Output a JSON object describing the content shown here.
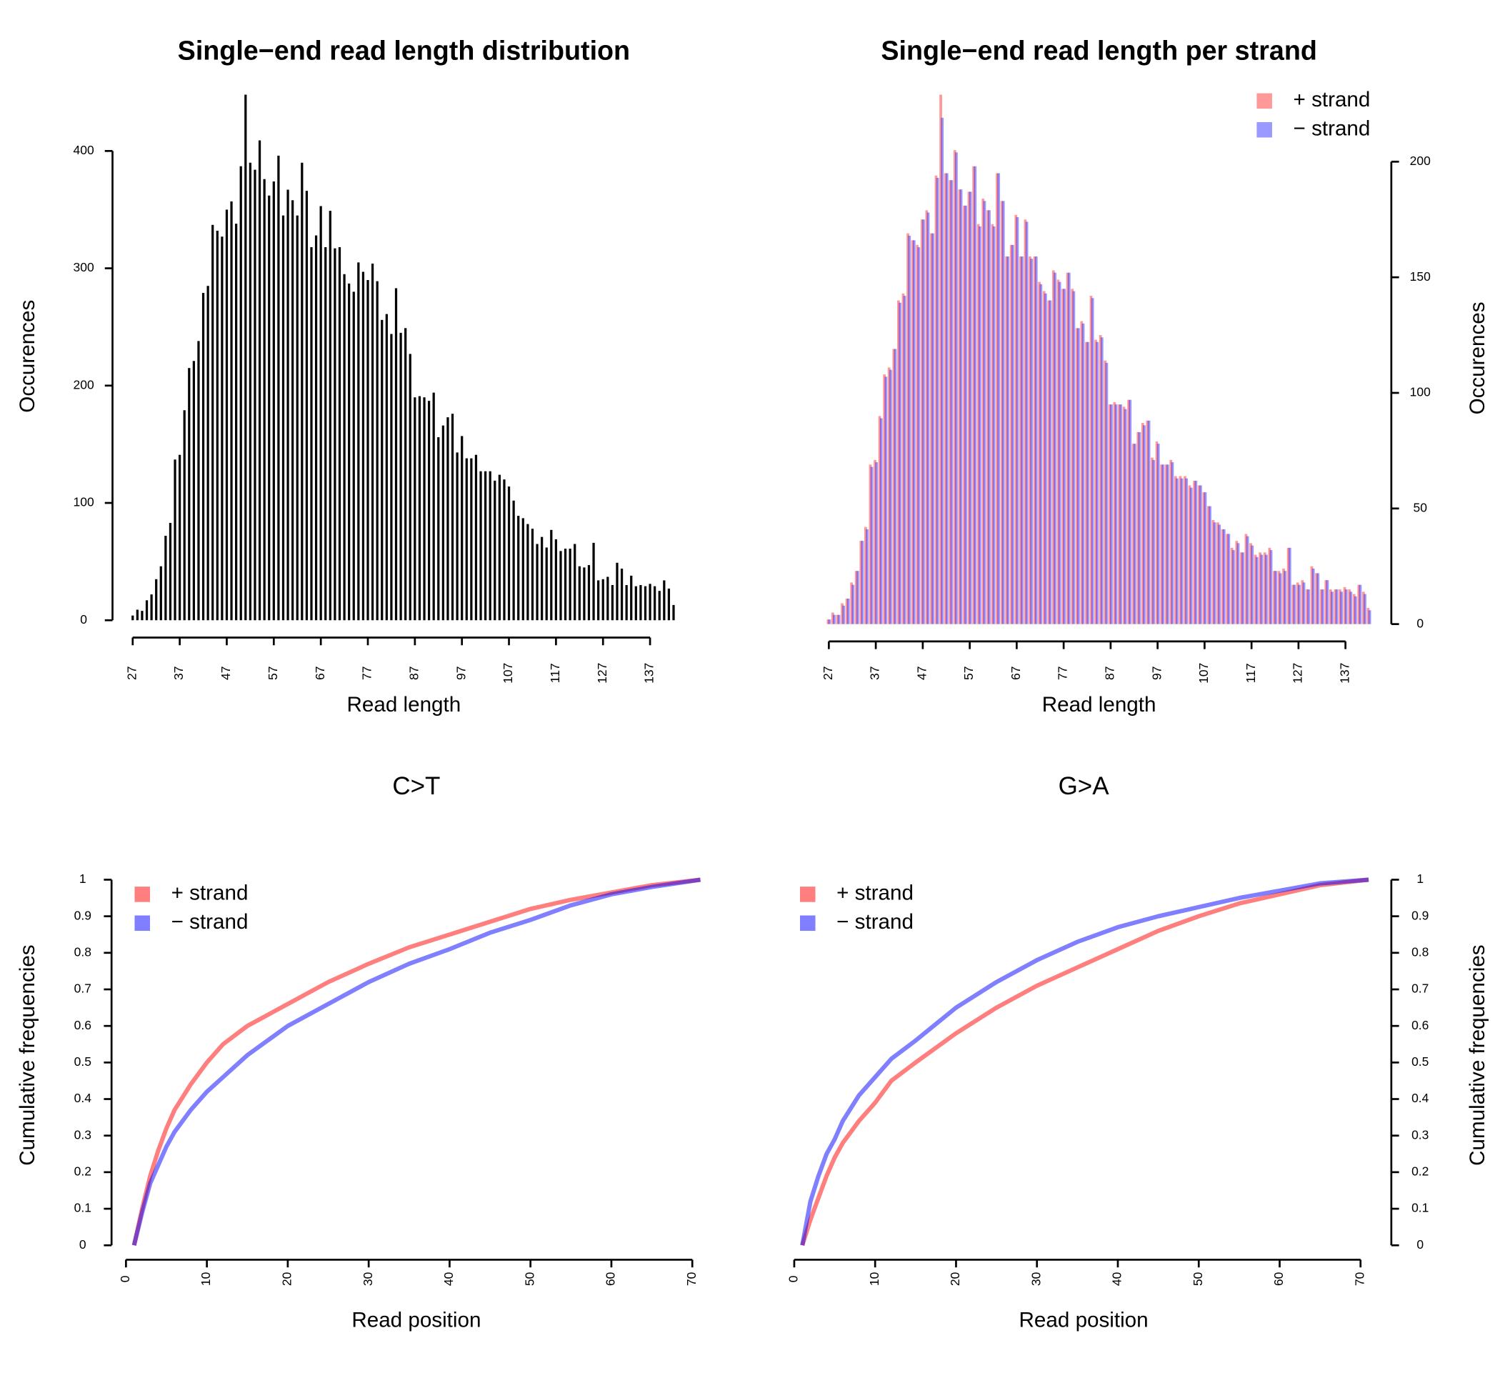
{
  "chart_data": [
    {
      "type": "bar",
      "title": "Single−end read length distribution",
      "x_label": "Read length",
      "y_label": "Occurences",
      "x": [
        27,
        28,
        29,
        30,
        31,
        32,
        33,
        34,
        35,
        36,
        37,
        38,
        39,
        40,
        41,
        42,
        43,
        44,
        45,
        46,
        47,
        48,
        49,
        50,
        51,
        52,
        53,
        54,
        55,
        56,
        57,
        58,
        59,
        60,
        61,
        62,
        63,
        64,
        65,
        66,
        67,
        68,
        69,
        70,
        71,
        72,
        73,
        74,
        75,
        76,
        77,
        78,
        79,
        80,
        81,
        82,
        83,
        84,
        85,
        86,
        87,
        88,
        89,
        90,
        91,
        92,
        93,
        94,
        95,
        96,
        97,
        98,
        99,
        100,
        101,
        102,
        103,
        104,
        105,
        106,
        107,
        108,
        109,
        110,
        111,
        112,
        113,
        114,
        115,
        116,
        117,
        118,
        119,
        120,
        121,
        122,
        123,
        124,
        125,
        126,
        127,
        128,
        129,
        130,
        131,
        132,
        133,
        134,
        135,
        136,
        137,
        138,
        139,
        140,
        141,
        142
      ],
      "values": [
        4,
        9,
        8,
        17,
        22,
        35,
        46,
        72,
        83,
        137,
        141,
        179,
        215,
        221,
        238,
        279,
        285,
        337,
        332,
        327,
        350,
        357,
        338,
        387,
        448,
        390,
        384,
        409,
        376,
        362,
        374,
        396,
        345,
        367,
        358,
        345,
        390,
        366,
        318,
        328,
        353,
        318,
        349,
        317,
        318,
        295,
        287,
        280,
        305,
        297,
        290,
        304,
        289,
        256,
        261,
        244,
        283,
        245,
        249,
        227,
        190,
        191,
        190,
        187,
        194,
        156,
        166,
        173,
        176,
        143,
        157,
        138,
        138,
        141,
        127,
        127,
        127,
        119,
        124,
        120,
        114,
        102,
        89,
        87,
        82,
        78,
        65,
        71,
        62,
        77,
        69,
        59,
        61,
        61,
        65,
        46,
        45,
        47,
        66,
        34,
        35,
        37,
        30,
        49,
        44,
        30,
        38,
        29,
        30,
        29,
        31,
        29,
        25,
        34,
        27,
        13
      ],
      "color": "#000000",
      "xlim": [
        26,
        143
      ],
      "xticks": [
        27,
        37,
        47,
        57,
        67,
        77,
        87,
        97,
        107,
        117,
        127,
        137
      ],
      "ylim": [
        0,
        450
      ],
      "yticks": [
        0,
        100,
        200,
        300,
        400
      ],
      "y_axis_side": "left"
    },
    {
      "type": "bar",
      "title": "Single−end read length per strand",
      "x_label": "Read length",
      "y_label": "Occurences",
      "x": [
        27,
        28,
        29,
        30,
        31,
        32,
        33,
        34,
        35,
        36,
        37,
        38,
        39,
        40,
        41,
        42,
        43,
        44,
        45,
        46,
        47,
        48,
        49,
        50,
        51,
        52,
        53,
        54,
        55,
        56,
        57,
        58,
        59,
        60,
        61,
        62,
        63,
        64,
        65,
        66,
        67,
        68,
        69,
        70,
        71,
        72,
        73,
        74,
        75,
        76,
        77,
        78,
        79,
        80,
        81,
        82,
        83,
        84,
        85,
        86,
        87,
        88,
        89,
        90,
        91,
        92,
        93,
        94,
        95,
        96,
        97,
        98,
        99,
        100,
        101,
        102,
        103,
        104,
        105,
        106,
        107,
        108,
        109,
        110,
        111,
        112,
        113,
        114,
        115,
        116,
        117,
        118,
        119,
        120,
        121,
        122,
        123,
        124,
        125,
        126,
        127,
        128,
        129,
        130,
        131,
        132,
        133,
        134,
        135,
        136,
        137,
        138,
        139,
        140,
        141,
        142
      ],
      "series": [
        {
          "name": "+ strand",
          "color": "#ff000066",
          "values": [
            2,
            5,
            4,
            9,
            11,
            18,
            23,
            36,
            42,
            69,
            71,
            90,
            108,
            111,
            119,
            140,
            143,
            169,
            166,
            164,
            175,
            179,
            169,
            194,
            229,
            195,
            192,
            205,
            188,
            181,
            187,
            198,
            173,
            184,
            179,
            173,
            195,
            183,
            159,
            164,
            177,
            159,
            175,
            159,
            159,
            148,
            144,
            140,
            153,
            149,
            145,
            152,
            145,
            128,
            131,
            122,
            142,
            123,
            125,
            114,
            95,
            96,
            95,
            94,
            97,
            78,
            83,
            87,
            88,
            72,
            79,
            69,
            69,
            71,
            64,
            64,
            64,
            60,
            62,
            60,
            57,
            51,
            45,
            44,
            41,
            39,
            33,
            36,
            31,
            39,
            35,
            30,
            31,
            31,
            33,
            23,
            23,
            24,
            33,
            17,
            18,
            19,
            15,
            25,
            22,
            15,
            19,
            15,
            15,
            15,
            16,
            15,
            13,
            17,
            14,
            7
          ]
        },
        {
          "name": "− strand",
          "color": "#0000ff66",
          "values": [
            2,
            4,
            4,
            8,
            11,
            17,
            23,
            36,
            41,
            68,
            70,
            89,
            107,
            110,
            119,
            139,
            142,
            168,
            166,
            163,
            175,
            178,
            169,
            193,
            219,
            195,
            192,
            204,
            188,
            181,
            187,
            198,
            172,
            183,
            179,
            172,
            195,
            183,
            159,
            164,
            176,
            159,
            174,
            158,
            159,
            147,
            143,
            140,
            152,
            148,
            145,
            152,
            144,
            128,
            130,
            122,
            141,
            122,
            124,
            113,
            95,
            95,
            95,
            93,
            97,
            78,
            83,
            86,
            88,
            71,
            78,
            69,
            69,
            70,
            63,
            63,
            63,
            59,
            62,
            60,
            57,
            51,
            44,
            43,
            41,
            39,
            32,
            35,
            31,
            38,
            34,
            29,
            30,
            30,
            32,
            23,
            22,
            23,
            33,
            17,
            17,
            18,
            15,
            24,
            22,
            15,
            19,
            14,
            15,
            14,
            15,
            14,
            12,
            17,
            13,
            6
          ]
        }
      ],
      "xlim": [
        26,
        143
      ],
      "xticks": [
        27,
        37,
        47,
        57,
        67,
        77,
        87,
        97,
        107,
        117,
        127,
        137
      ],
      "ylim": [
        0,
        230
      ],
      "yticks": [
        0,
        50,
        100,
        150,
        200
      ],
      "y_axis_side": "right",
      "legend": "top-right"
    },
    {
      "type": "line",
      "title": "C>T",
      "x_label": "Read position",
      "y_label": "Cumulative frequencies",
      "x": [
        1,
        2,
        3,
        4,
        5,
        6,
        8,
        10,
        12,
        15,
        20,
        25,
        30,
        35,
        40,
        45,
        50,
        55,
        60,
        65,
        71
      ],
      "series": [
        {
          "name": "+ strand",
          "color": "#ff000080",
          "values": [
            0,
            0.1,
            0.19,
            0.26,
            0.32,
            0.37,
            0.44,
            0.5,
            0.55,
            0.6,
            0.66,
            0.72,
            0.77,
            0.815,
            0.85,
            0.885,
            0.92,
            0.945,
            0.965,
            0.985,
            1
          ]
        },
        {
          "name": "− strand",
          "color": "#0000ff80",
          "values": [
            0,
            0.09,
            0.17,
            0.22,
            0.27,
            0.31,
            0.37,
            0.42,
            0.46,
            0.52,
            0.6,
            0.66,
            0.72,
            0.77,
            0.81,
            0.855,
            0.89,
            0.93,
            0.96,
            0.98,
            1
          ]
        }
      ],
      "xlim": [
        0,
        71.5
      ],
      "xticks": [
        0,
        10,
        20,
        30,
        40,
        50,
        60,
        70
      ],
      "ylim": [
        0,
        1.04
      ],
      "yticks": [
        0,
        0.1,
        0.2,
        0.3,
        0.4,
        0.5,
        0.6,
        0.7,
        0.8,
        0.9,
        1
      ],
      "y_axis_side": "left",
      "legend": "top-left"
    },
    {
      "type": "line",
      "title": "G>A",
      "x_label": "Read position",
      "y_label": "Cumulative frequencies",
      "x": [
        1,
        2,
        3,
        4,
        5,
        6,
        8,
        10,
        12,
        15,
        20,
        25,
        30,
        35,
        40,
        45,
        50,
        55,
        60,
        65,
        71
      ],
      "series": [
        {
          "name": "+ strand",
          "color": "#ff000080",
          "values": [
            0,
            0.07,
            0.13,
            0.19,
            0.24,
            0.28,
            0.34,
            0.39,
            0.45,
            0.5,
            0.58,
            0.65,
            0.71,
            0.76,
            0.81,
            0.86,
            0.9,
            0.935,
            0.96,
            0.985,
            1
          ]
        },
        {
          "name": "− strand",
          "color": "#0000ff80",
          "values": [
            0,
            0.12,
            0.19,
            0.25,
            0.29,
            0.34,
            0.41,
            0.46,
            0.51,
            0.56,
            0.65,
            0.72,
            0.78,
            0.83,
            0.87,
            0.9,
            0.925,
            0.95,
            0.97,
            0.99,
            1
          ]
        }
      ],
      "xlim": [
        0,
        71.5
      ],
      "xticks": [
        0,
        10,
        20,
        30,
        40,
        50,
        60,
        70
      ],
      "ylim": [
        0,
        1.04
      ],
      "yticks": [
        0,
        0.1,
        0.2,
        0.3,
        0.4,
        0.5,
        0.6,
        0.7,
        0.8,
        0.9,
        1
      ],
      "y_axis_side": "right",
      "legend": "top-left"
    }
  ]
}
